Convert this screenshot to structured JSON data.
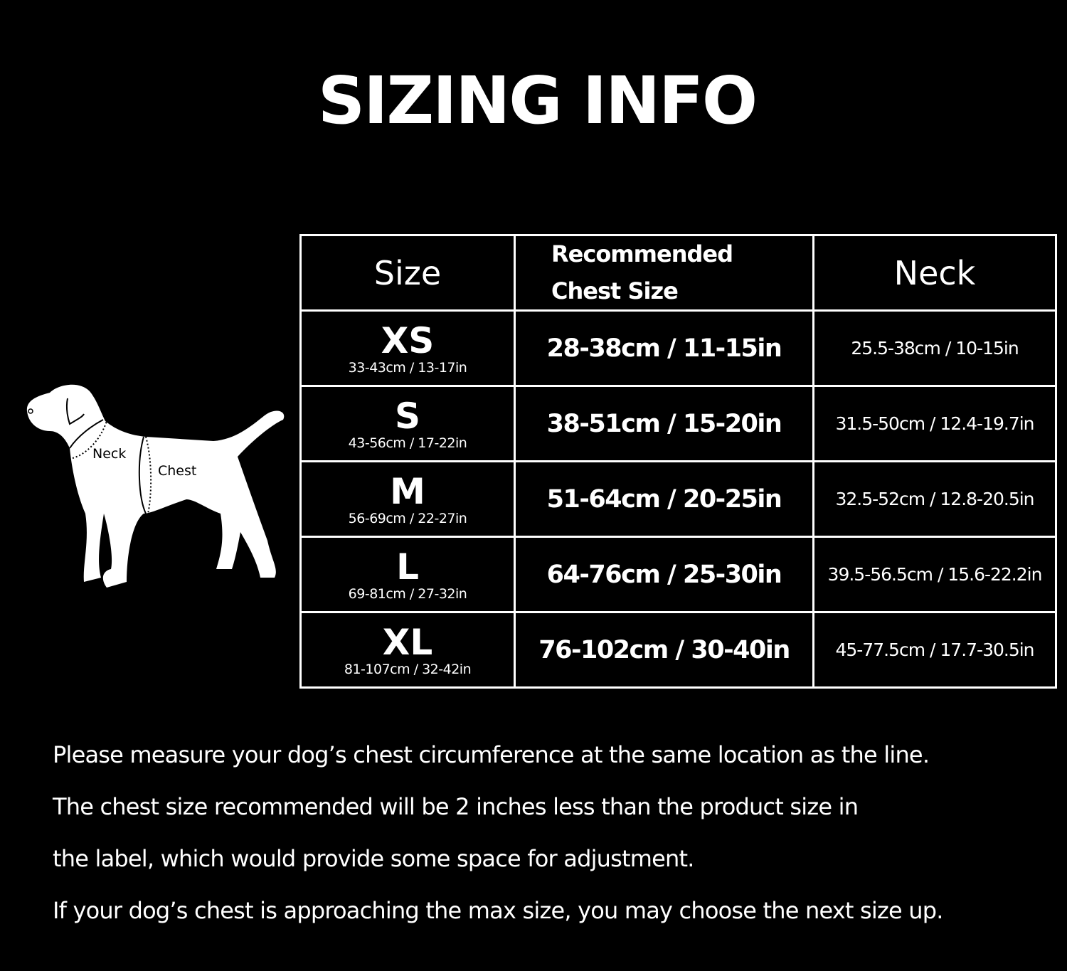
{
  "title": "SIZING INFO",
  "illustration": {
    "neck_label": "Neck",
    "chest_label": "Chest"
  },
  "table": {
    "headers": {
      "size": "Size",
      "chest_line1": "Recommended",
      "chest_line2": "Chest Size",
      "neck": "Neck"
    },
    "rows": [
      {
        "size": "XS",
        "product_size": "33-43cm / 13-17in",
        "chest": "28-38cm / 11-15in",
        "neck": "25.5-38cm / 10-15in"
      },
      {
        "size": "S",
        "product_size": "43-56cm / 17-22in",
        "chest": "38-51cm / 15-20in",
        "neck": "31.5-50cm / 12.4-19.7in"
      },
      {
        "size": "M",
        "product_size": "56-69cm / 22-27in",
        "chest": "51-64cm / 20-25in",
        "neck": "32.5-52cm / 12.8-20.5in"
      },
      {
        "size": "L",
        "product_size": "69-81cm / 27-32in",
        "chest": "64-76cm / 25-30in",
        "neck": "39.5-56.5cm / 15.6-22.2in"
      },
      {
        "size": "XL",
        "product_size": "81-107cm / 32-42in",
        "chest": "76-102cm / 30-40in",
        "neck": "45-77.5cm / 17.7-30.5in"
      }
    ]
  },
  "notes": [
    "Please measure your dog’s chest circumference at the same location as the line.",
    "The chest size recommended will be 2 inches less than the product size in",
    "the label, which would provide some space for adjustment.",
    "If your dog’s chest is approaching the max size, you may choose the next size up."
  ]
}
